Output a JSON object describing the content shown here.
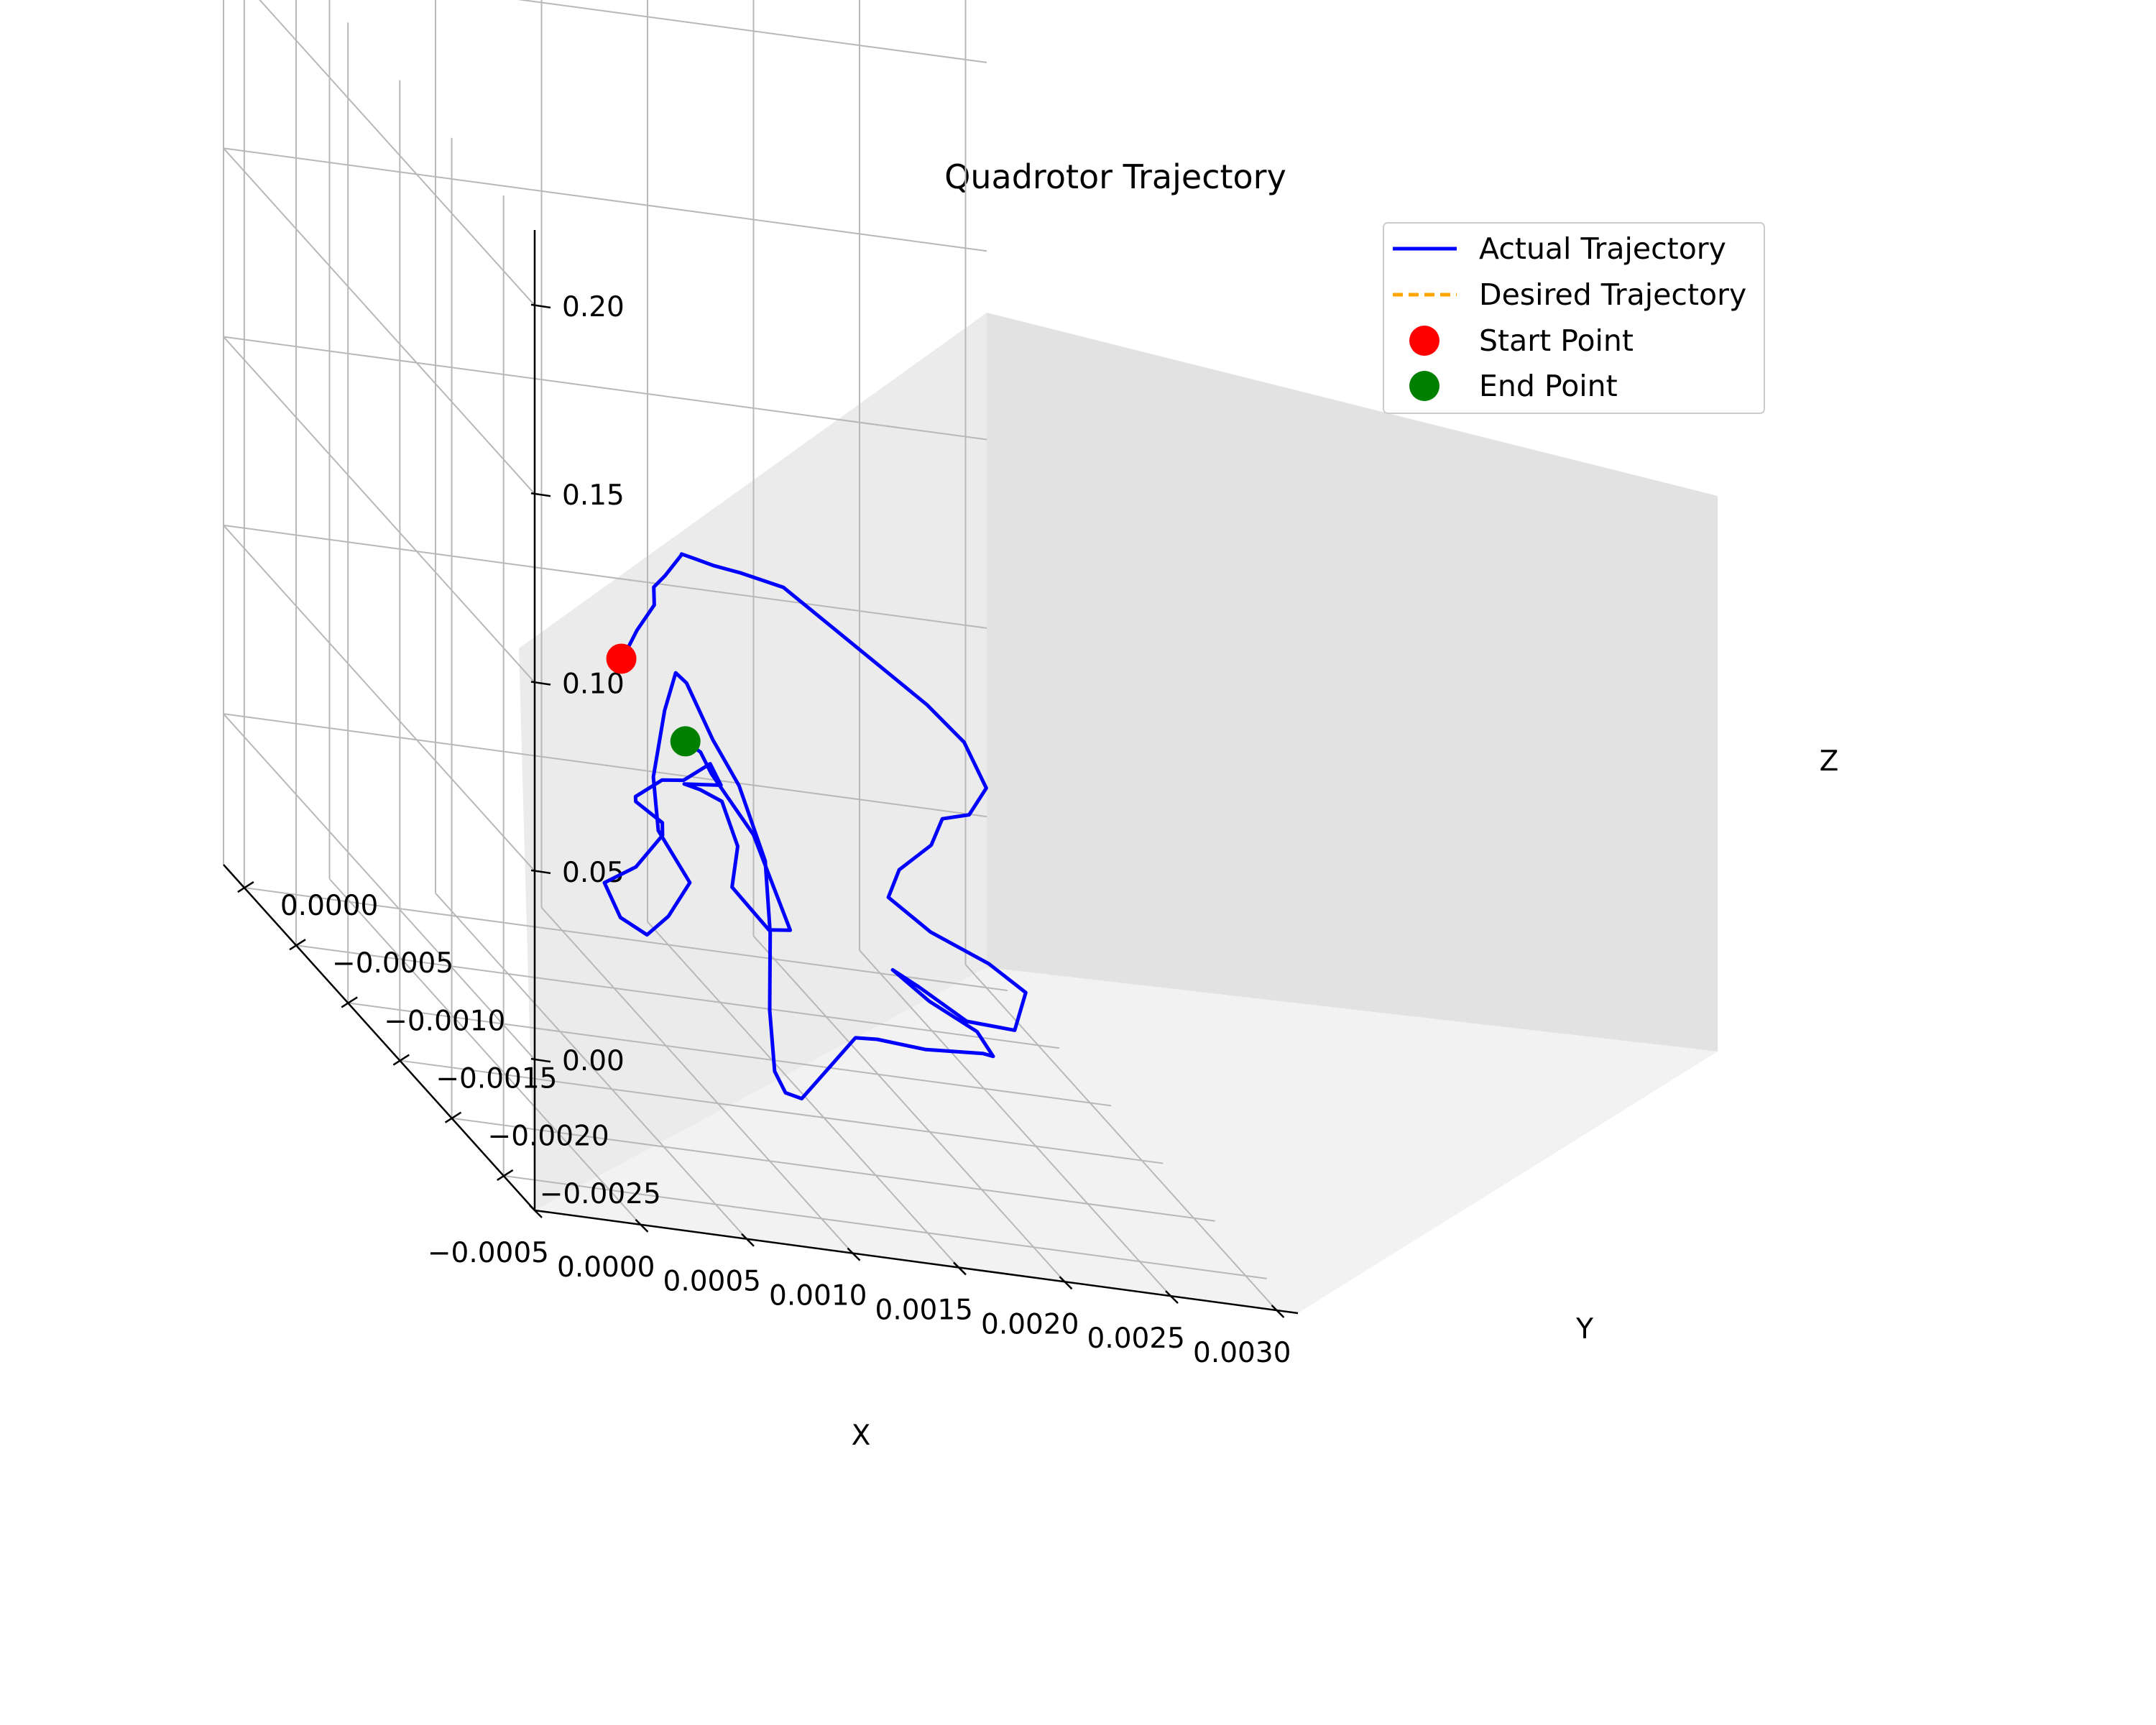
{
  "chart_data": {
    "type": "line",
    "projection": "3d",
    "title": "Quadrotor Trajectory",
    "xlabel": "X",
    "ylabel": "Y",
    "zlabel": "Z",
    "xlim": [
      -0.0005,
      0.0031
    ],
    "ylim": [
      -0.0028,
      0.0002
    ],
    "zlim": [
      -0.04,
      0.22
    ],
    "x_ticks": [
      "−0.0005",
      "0.0000",
      "0.0005",
      "0.0010",
      "0.0015",
      "0.0020",
      "0.0025",
      "0.0030"
    ],
    "y_ticks": [
      "0.0000",
      "−0.0005",
      "−0.0010",
      "−0.0015",
      "−0.0020",
      "−0.0025"
    ],
    "z_ticks": [
      "0.20",
      "0.15",
      "0.10",
      "0.05",
      "0.00"
    ],
    "grid": true,
    "legend_position": "top-right",
    "colors": {
      "actual": "#0000ff",
      "desired": "#ffa500",
      "start": "#ff0000",
      "end": "#008000"
    },
    "series": [
      {
        "name": "Actual Trajectory",
        "style": "solid",
        "points": [
          [
            8e-05,
            -0.00245,
            0.1
          ],
          [
            0.00015,
            -0.0023,
            0.095
          ],
          [
            0.0003,
            -0.00215,
            0.1
          ],
          [
            0.00048,
            -0.00195,
            0.102
          ],
          [
            0.0006,
            -0.0017,
            0.1
          ],
          [
            0.00075,
            -0.0015,
            0.098
          ],
          [
            0.0009,
            -0.00135,
            0.1
          ],
          [
            0.001,
            -0.00115,
            0.095
          ],
          [
            0.00115,
            -0.001,
            0.09
          ],
          [
            0.0013,
            -0.00085,
            0.085
          ],
          [
            0.0015,
            -0.0007,
            0.08
          ],
          [
            0.00175,
            -0.0006,
            0.075
          ],
          [
            0.002,
            -0.00055,
            0.065
          ],
          [
            0.00225,
            -0.0005,
            0.055
          ],
          [
            0.0025,
            -0.00045,
            0.045
          ],
          [
            0.0027,
            -0.0004,
            0.035
          ],
          [
            0.00278,
            -0.00045,
            0.025
          ],
          [
            0.00265,
            -0.00055,
            0.02
          ],
          [
            0.00245,
            -0.0007,
            0.022
          ],
          [
            0.0023,
            -0.0009,
            0.02
          ],
          [
            0.0021,
            -0.001,
            0.015
          ],
          [
            0.002,
            -0.0011,
            0.01
          ],
          [
            0.00215,
            -0.0012,
            0.005
          ],
          [
            0.0024,
            -0.00125,
            0.0
          ],
          [
            0.00255,
            -0.0013,
            -0.005
          ],
          [
            0.0024,
            -0.0015,
            -0.01
          ],
          [
            0.00215,
            -0.00155,
            -0.008
          ],
          [
            0.00195,
            -0.0015,
            -0.002
          ],
          [
            0.0018,
            -0.00155,
            0.003
          ],
          [
            0.0019,
            -0.0017,
            0.0
          ],
          [
            0.0021,
            -0.00175,
            -0.005
          ],
          [
            0.00225,
            -0.0016,
            -0.015
          ],
          [
            0.0023,
            -0.0014,
            -0.02
          ],
          [
            0.0021,
            -0.00125,
            -0.025
          ],
          [
            0.0018,
            -0.0014,
            -0.02
          ],
          [
            0.0016,
            -0.0016,
            -0.015
          ],
          [
            0.0014,
            -0.00175,
            -0.02
          ],
          [
            0.0012,
            -0.0019,
            -0.025
          ],
          [
            0.00105,
            -0.00205,
            -0.02
          ],
          [
            0.00095,
            -0.00215,
            -0.012
          ],
          [
            0.001,
            -0.002,
            0.0
          ],
          [
            0.0011,
            -0.0018,
            0.015
          ],
          [
            0.00115,
            -0.00165,
            0.03
          ],
          [
            0.0011,
            -0.0015,
            0.045
          ],
          [
            0.001,
            -0.00145,
            0.055
          ],
          [
            0.00095,
            -0.0013,
            0.065
          ],
          [
            0.00085,
            -0.0014,
            0.07
          ],
          [
            0.0007,
            -0.0016,
            0.065
          ],
          [
            0.0006,
            -0.00175,
            0.06
          ],
          [
            0.0005,
            -0.0019,
            0.055
          ],
          [
            0.00045,
            -0.00205,
            0.045
          ],
          [
            0.00055,
            -0.00215,
            0.035
          ],
          [
            0.0004,
            -0.00225,
            0.028
          ],
          [
            0.00025,
            -0.00235,
            0.025
          ],
          [
            0.0001,
            -0.0024,
            0.03
          ],
          [
            0.0,
            -0.00245,
            0.04
          ],
          [
            0.0001,
            -0.00255,
            0.048
          ],
          [
            0.00025,
            -0.0025,
            0.056
          ],
          [
            0.0002,
            -0.0026,
            0.062
          ],
          [
            5e-05,
            -0.00265,
            0.068
          ],
          [
            0.0,
            -0.00275,
            0.072
          ],
          [
            0.00015,
            -0.0027,
            0.076
          ],
          [
            0.0003,
            -0.0026,
            0.074
          ],
          [
            0.00045,
            -0.00255,
            0.078
          ],
          [
            0.00055,
            -0.00245,
            0.07
          ],
          [
            0.00045,
            -0.0023,
            0.065
          ],
          [
            0.0006,
            -0.00215,
            0.06
          ],
          [
            0.00075,
            -0.00205,
            0.055
          ],
          [
            0.0008,
            -0.0021,
            0.045
          ],
          [
            0.0007,
            -0.00225,
            0.038
          ],
          [
            0.0008,
            -0.0024,
            0.032
          ],
          [
            0.00095,
            -0.0023,
            0.03
          ],
          [
            0.00085,
            -0.00215,
            0.05
          ],
          [
            0.0007,
            -0.00205,
            0.062
          ],
          [
            0.0006,
            -0.00215,
            0.07
          ],
          [
            0.00048,
            -0.00225,
            0.075
          ]
        ]
      },
      {
        "name": "Desired Trajectory",
        "style": "dashed",
        "points": []
      }
    ],
    "markers": [
      {
        "name": "Start Point",
        "point": [
          8e-05,
          -0.00245,
          0.1
        ]
      },
      {
        "name": "End Point",
        "point": [
          0.00048,
          -0.00225,
          0.075
        ]
      }
    ]
  }
}
